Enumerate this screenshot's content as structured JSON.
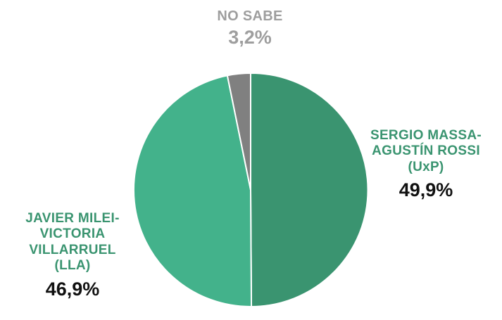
{
  "chart_data": {
    "type": "pie",
    "title": "",
    "slices": [
      {
        "label_lines": [
          "SERGIO MASSA-",
          "AGUSTÍN ROSSI",
          "(UxP)"
        ],
        "value": 49.9,
        "value_label": "49,9%",
        "color": "#3a9470",
        "label_color": "#3a9470"
      },
      {
        "label_lines": [
          "JAVIER MILEI-",
          "VICTORIA",
          "VILLARRUEL",
          "(LLA)"
        ],
        "value": 46.9,
        "value_label": "46,9%",
        "color": "#43b28b",
        "label_color": "#3a9470"
      },
      {
        "label_lines": [
          "NO SABE"
        ],
        "value": 3.2,
        "value_label": "3,2%",
        "color": "#808080",
        "label_color": "#9e9e9e"
      }
    ]
  }
}
